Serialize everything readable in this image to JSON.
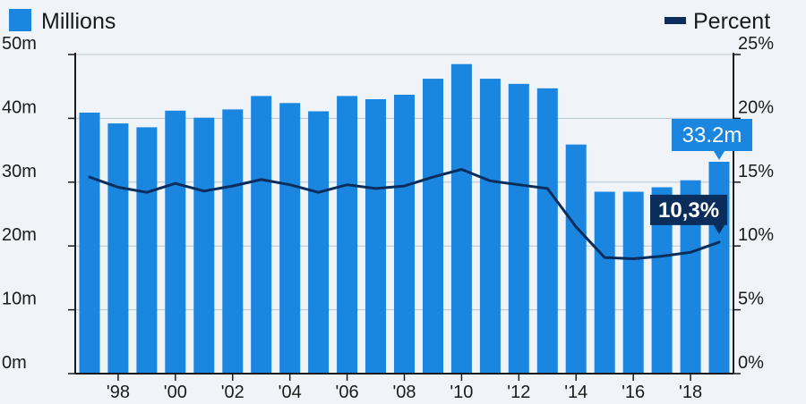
{
  "chart_data": {
    "type": "bar",
    "categories": [
      "1997",
      "1998",
      "1999",
      "2000",
      "2001",
      "2002",
      "2003",
      "2004",
      "2005",
      "2006",
      "2007",
      "2008",
      "2009",
      "2010",
      "2011",
      "2012",
      "2013",
      "2014",
      "2015",
      "2016",
      "2017",
      "2018",
      "2019"
    ],
    "x_tick_labels": [
      "'98",
      "'00",
      "'02",
      "'04",
      "'06",
      "'08",
      "'10",
      "'12",
      "'14",
      "'16",
      "'18"
    ],
    "x_tick_categories": [
      "1998",
      "2000",
      "2002",
      "2004",
      "2006",
      "2008",
      "2010",
      "2012",
      "2014",
      "2016",
      "2018"
    ],
    "series": [
      {
        "name": "Millions",
        "type": "bar",
        "axis": "left",
        "values": [
          40.9,
          39.2,
          38.6,
          41.2,
          40.1,
          41.4,
          43.5,
          42.4,
          41.1,
          43.5,
          43.0,
          43.7,
          46.2,
          48.5,
          46.2,
          45.4,
          44.7,
          35.9,
          28.5,
          28.5,
          29.2,
          30.3,
          33.2
        ]
      },
      {
        "name": "Percent",
        "type": "line",
        "axis": "right",
        "values": [
          15.4,
          14.6,
          14.2,
          14.9,
          14.3,
          14.7,
          15.2,
          14.8,
          14.2,
          14.8,
          14.5,
          14.7,
          15.4,
          16.0,
          15.1,
          14.8,
          14.5,
          11.5,
          9.1,
          9.0,
          9.2,
          9.5,
          10.3
        ]
      }
    ],
    "y_left": {
      "min": 0,
      "max": 50,
      "ticks": [
        "0m",
        "10m",
        "20m",
        "30m",
        "40m",
        "50m"
      ]
    },
    "y_right": {
      "min": 0,
      "max": 25,
      "ticks": [
        "0%",
        "5%",
        "10%",
        "15%",
        "20%",
        "25%"
      ]
    },
    "callouts": {
      "bar_last": "33.2m",
      "line_last": "10,3%"
    },
    "grid": true,
    "legend_placement": "top",
    "colors": {
      "bar": "#1a86e0",
      "line": "#0b2d5c",
      "grid": "#b8c4d0",
      "background": "#f0f4f8"
    }
  }
}
